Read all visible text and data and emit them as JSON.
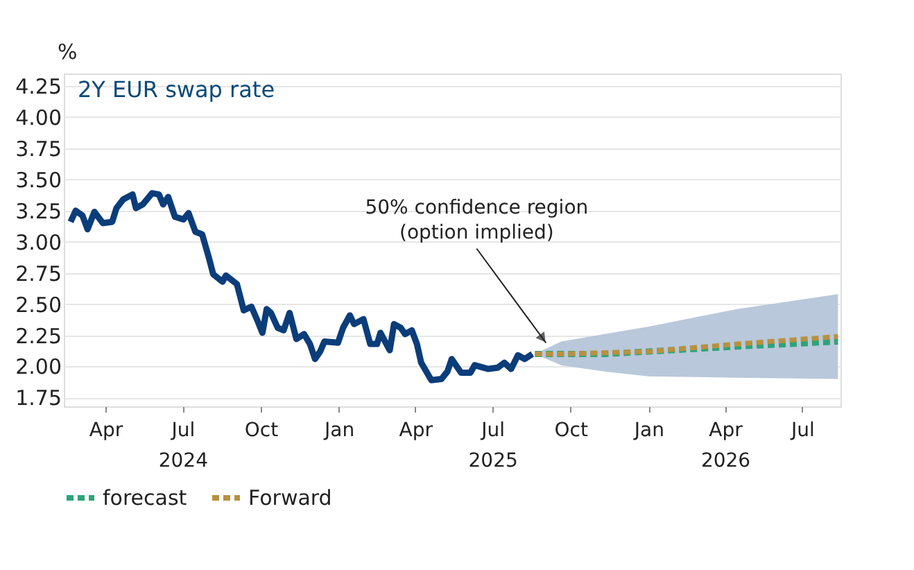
{
  "chart_data": {
    "type": "line",
    "title": "2Y EUR swap rate",
    "ylabel": "%",
    "xlim": [
      "2024-02-12",
      "2026-08-15"
    ],
    "xticks": [
      {
        "value": "2024-04-01",
        "label": "Apr"
      },
      {
        "value": "2024-07-01",
        "label": "Jul\n2024"
      },
      {
        "value": "2024-10-01",
        "label": "Oct"
      },
      {
        "value": "2025-01-01",
        "label": "Jan"
      },
      {
        "value": "2025-04-01",
        "label": "Apr"
      },
      {
        "value": "2025-07-01",
        "label": "Jul\n2025"
      },
      {
        "value": "2025-10-01",
        "label": "Oct"
      },
      {
        "value": "2026-01-01",
        "label": "Jan"
      },
      {
        "value": "2026-04-01",
        "label": "Apr\n2026"
      },
      {
        "value": "2026-07-01",
        "label": "Jul"
      }
    ],
    "ylim": [
      1.68,
      4.35
    ],
    "yticks": [
      1.75,
      {
        "value": 2,
        "label": "2.00"
      },
      2.25,
      {
        "value": 2.5,
        "label": "2.50"
      },
      2.75,
      {
        "value": 3,
        "label": "3.00"
      },
      3.25,
      {
        "value": 3.5,
        "label": "3.50"
      },
      3.75,
      {
        "value": 4,
        "label": "4.00"
      },
      4.25
    ],
    "grid": "y",
    "legend": "bottom",
    "marker": "none",
    "series": [
      {
        "color": "#0b3d7a",
        "line_style": "solid",
        "x": [
          "2024-02-20",
          "2024-02-26",
          "2024-03-05",
          "2024-03-11",
          "2024-03-19",
          "2024-03-29",
          "2024-04-09",
          "2024-04-14",
          "2024-04-22",
          "2024-05-03",
          "2024-05-07",
          "2024-05-15",
          "2024-05-26",
          "2024-06-03",
          "2024-06-08",
          "2024-06-14",
          "2024-06-22",
          "2024-07-02",
          "2024-07-08",
          "2024-07-16",
          "2024-07-24",
          "2024-08-01",
          "2024-08-06",
          "2024-08-17",
          "2024-08-21",
          "2024-09-03",
          "2024-09-11",
          "2024-09-20",
          "2024-09-27",
          "2024-10-03",
          "2024-10-08",
          "2024-10-13",
          "2024-10-21",
          "2024-10-28",
          "2024-11-04",
          "2024-11-12",
          "2024-11-21",
          "2024-11-28",
          "2024-12-04",
          "2024-12-10",
          "2024-12-15",
          "2024-12-31",
          "2025-01-06",
          "2025-01-14",
          "2025-01-19",
          "2025-01-30",
          "2025-02-07",
          "2025-02-15",
          "2025-02-19",
          "2025-03-02",
          "2025-03-07",
          "2025-03-15",
          "2025-03-20",
          "2025-03-28",
          "2025-04-03",
          "2025-04-08",
          "2025-04-20",
          "2025-05-02",
          "2025-05-09",
          "2025-05-14",
          "2025-05-25",
          "2025-06-05",
          "2025-06-10",
          "2025-06-26",
          "2025-07-07",
          "2025-07-15",
          "2025-07-23",
          "2025-07-31",
          "2025-08-08",
          "2025-08-17"
        ],
        "values": [
          3.16,
          3.25,
          3.21,
          3.1,
          3.24,
          3.15,
          3.16,
          3.27,
          3.34,
          3.38,
          3.27,
          3.3,
          3.39,
          3.38,
          3.3,
          3.36,
          3.2,
          3.18,
          3.23,
          3.08,
          3.06,
          2.87,
          2.74,
          2.68,
          2.73,
          2.66,
          2.45,
          2.48,
          2.37,
          2.27,
          2.46,
          2.43,
          2.31,
          2.29,
          2.43,
          2.22,
          2.26,
          2.18,
          2.06,
          2.12,
          2.2,
          2.19,
          2.31,
          2.41,
          2.34,
          2.38,
          2.18,
          2.18,
          2.27,
          2.13,
          2.34,
          2.31,
          2.26,
          2.29,
          2.18,
          2.03,
          1.89,
          1.9,
          1.96,
          2.06,
          1.95,
          1.95,
          2.01,
          1.98,
          1.99,
          2.03,
          1.98,
          2.09,
          2.06,
          2.1
        ]
      },
      {
        "name": "forecast",
        "color": "#2ea37a",
        "line_style": "dashed",
        "x": [
          "2025-08-20",
          "2025-09-20",
          "2025-11-10",
          "2026-01-01",
          "2026-04-15",
          "2026-08-12"
        ],
        "values": [
          2.1,
          2.1,
          2.1,
          2.12,
          2.16,
          2.2
        ],
        "lower": [
          2.1,
          2.01,
          1.96,
          1.92,
          1.91,
          1.9
        ],
        "upper": [
          2.1,
          2.2,
          2.26,
          2.32,
          2.46,
          2.58
        ]
      },
      {
        "name": "Forward",
        "color": "#b8913f",
        "line_style": "dashed",
        "x": [
          "2025-08-20",
          "2025-09-20",
          "2025-11-10",
          "2026-01-01",
          "2026-04-15",
          "2026-08-12"
        ],
        "values": [
          2.1,
          2.1,
          2.11,
          2.12,
          2.18,
          2.24
        ]
      }
    ],
    "annotations": [
      "50% confidence region\n(option implied)"
    ]
  }
}
